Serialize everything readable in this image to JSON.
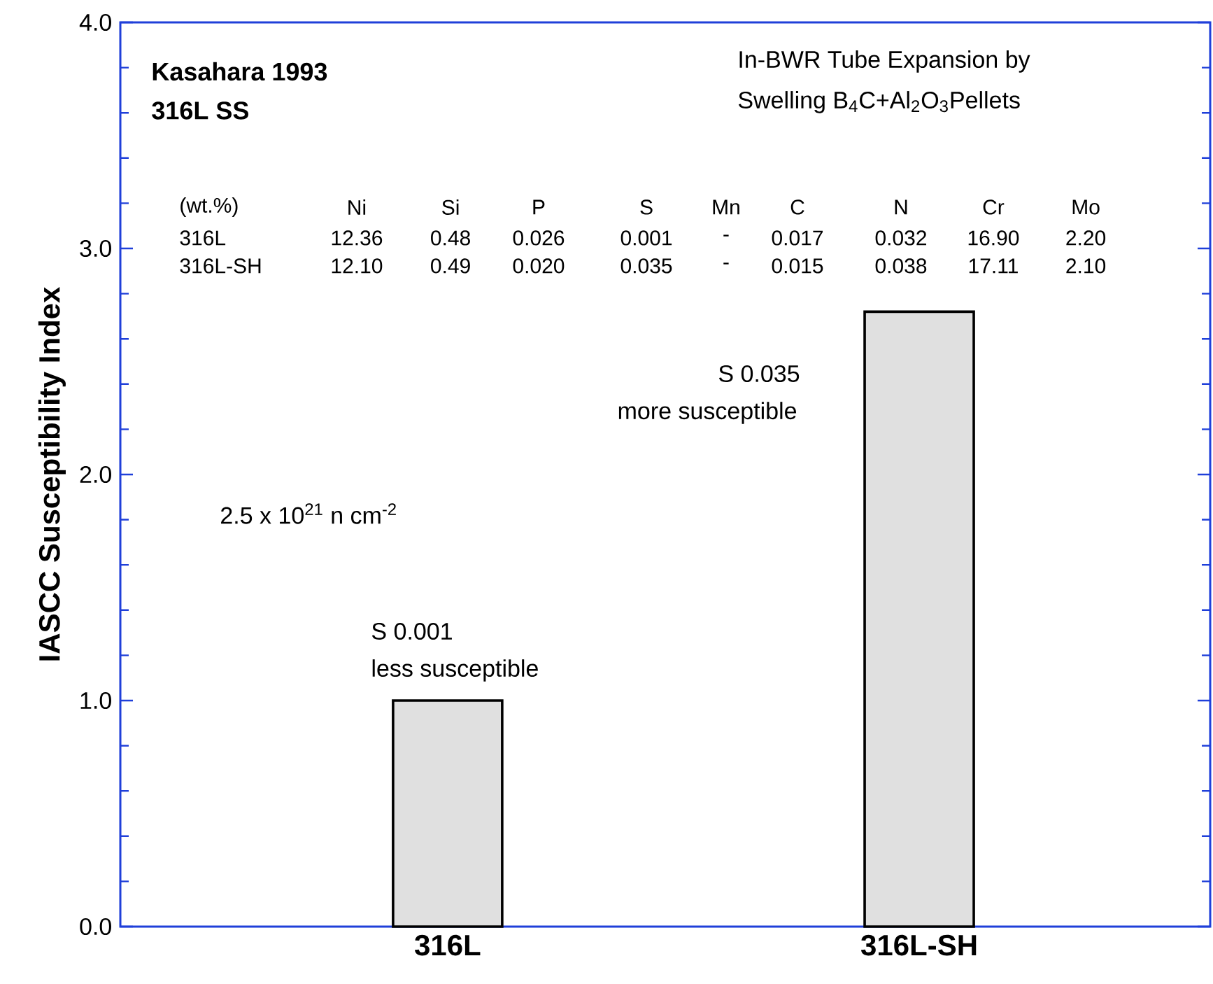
{
  "chart_data": {
    "type": "bar",
    "title": "Kasahara 1993",
    "subtitle": "316L SS",
    "ylabel": "IASCC Susceptibility Index",
    "categories": [
      "316L",
      "316L-SH"
    ],
    "values": [
      1.0,
      2.72
    ],
    "color": "#000000",
    "ylim": [
      0,
      4
    ],
    "yticks": [
      {
        "value": 0,
        "label": "0.0"
      },
      {
        "value": 1,
        "label": "1.0"
      },
      {
        "value": 2,
        "label": "2.0"
      },
      {
        "value": 3,
        "label": "3.0"
      },
      {
        "value": 4,
        "label": "4.0"
      }
    ],
    "grid": false,
    "annotations": [
      "In-BWR Tube Expansion by",
      "Swelling B$_{4}$C+Al$_{2}$O$_{3}$Pellets",
      "2.5 x 10$^{21}$ n cm$^{-2}$",
      "S 0.001",
      "less susceptible",
      "S 0.035",
      "more susceptible",
      "(wt.%)",
      "Ni",
      "Si",
      "P",
      "S",
      "Mn",
      "C",
      "N",
      "Cr",
      "Mo",
      "316L",
      "12.36",
      "0.48",
      "0.026",
      "0.001",
      "-",
      "0.017",
      "0.032",
      "16.90",
      "2.20",
      "316L-SH",
      "12.10",
      "0.49",
      "0.020",
      "0.035",
      "-",
      "0.015",
      "0.038",
      "17.11",
      "2.10"
    ]
  }
}
